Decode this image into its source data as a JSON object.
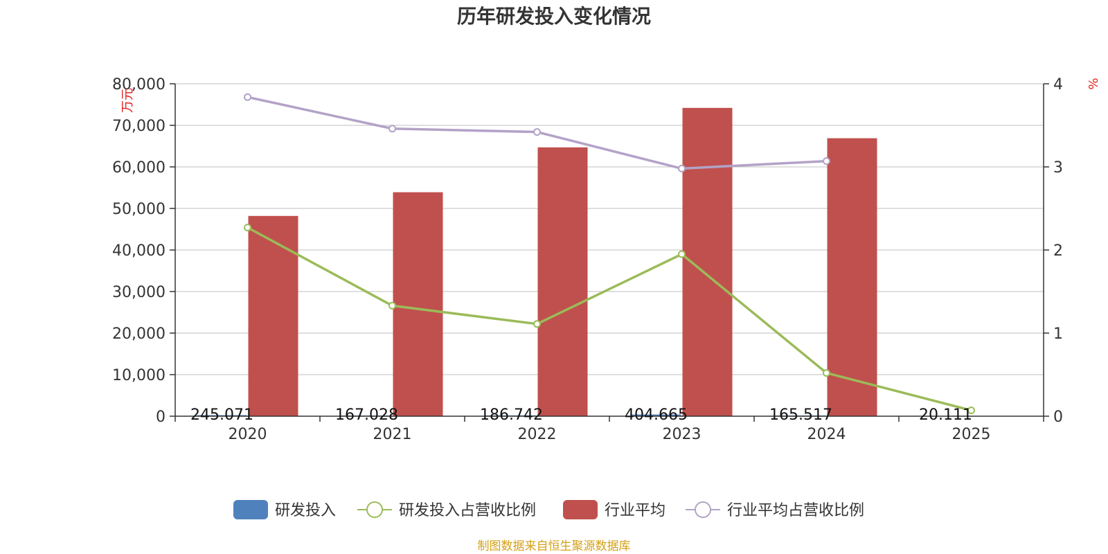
{
  "chart_data": {
    "type": "bar",
    "title": "历年研发投入变化情况",
    "categories": [
      "2020",
      "2021",
      "2022",
      "2023",
      "2024",
      "2025"
    ],
    "left_axis": {
      "unit": "万元",
      "min": 0,
      "max": 80000,
      "ticks": [
        "0",
        "10,000",
        "20,000",
        "30,000",
        "40,000",
        "50,000",
        "60,000",
        "70,000",
        "80,000"
      ]
    },
    "right_axis": {
      "unit": "%",
      "min": 0,
      "max": 4,
      "ticks": [
        "0",
        "1",
        "2",
        "3",
        "4"
      ]
    },
    "series": [
      {
        "name": "研发投入",
        "kind": "bar",
        "axis": "left",
        "color": "#4f81bd",
        "values": [
          245.071,
          167.028,
          186.742,
          404.665,
          165.517,
          20.111
        ],
        "labels": [
          "245.071",
          "167.028",
          "186.742",
          "404.665",
          "165.517",
          "20.111"
        ]
      },
      {
        "name": "研发投入占营收比例",
        "kind": "line",
        "axis": "right",
        "color": "#9bbb59",
        "values": [
          2.27,
          1.33,
          1.11,
          1.95,
          0.52,
          0.07
        ]
      },
      {
        "name": "行业平均",
        "kind": "bar",
        "axis": "left",
        "color": "#c0504d",
        "values": [
          48200,
          53900,
          64700,
          74200,
          66900,
          null
        ]
      },
      {
        "name": "行业平均占营收比例",
        "kind": "line",
        "axis": "right",
        "color": "#b3a2c7",
        "values": [
          3.84,
          3.46,
          3.42,
          2.98,
          3.07,
          null
        ]
      }
    ],
    "grid": true,
    "legend": "bottom-center"
  },
  "source_text": "制图数据来自恒生聚源数据库"
}
